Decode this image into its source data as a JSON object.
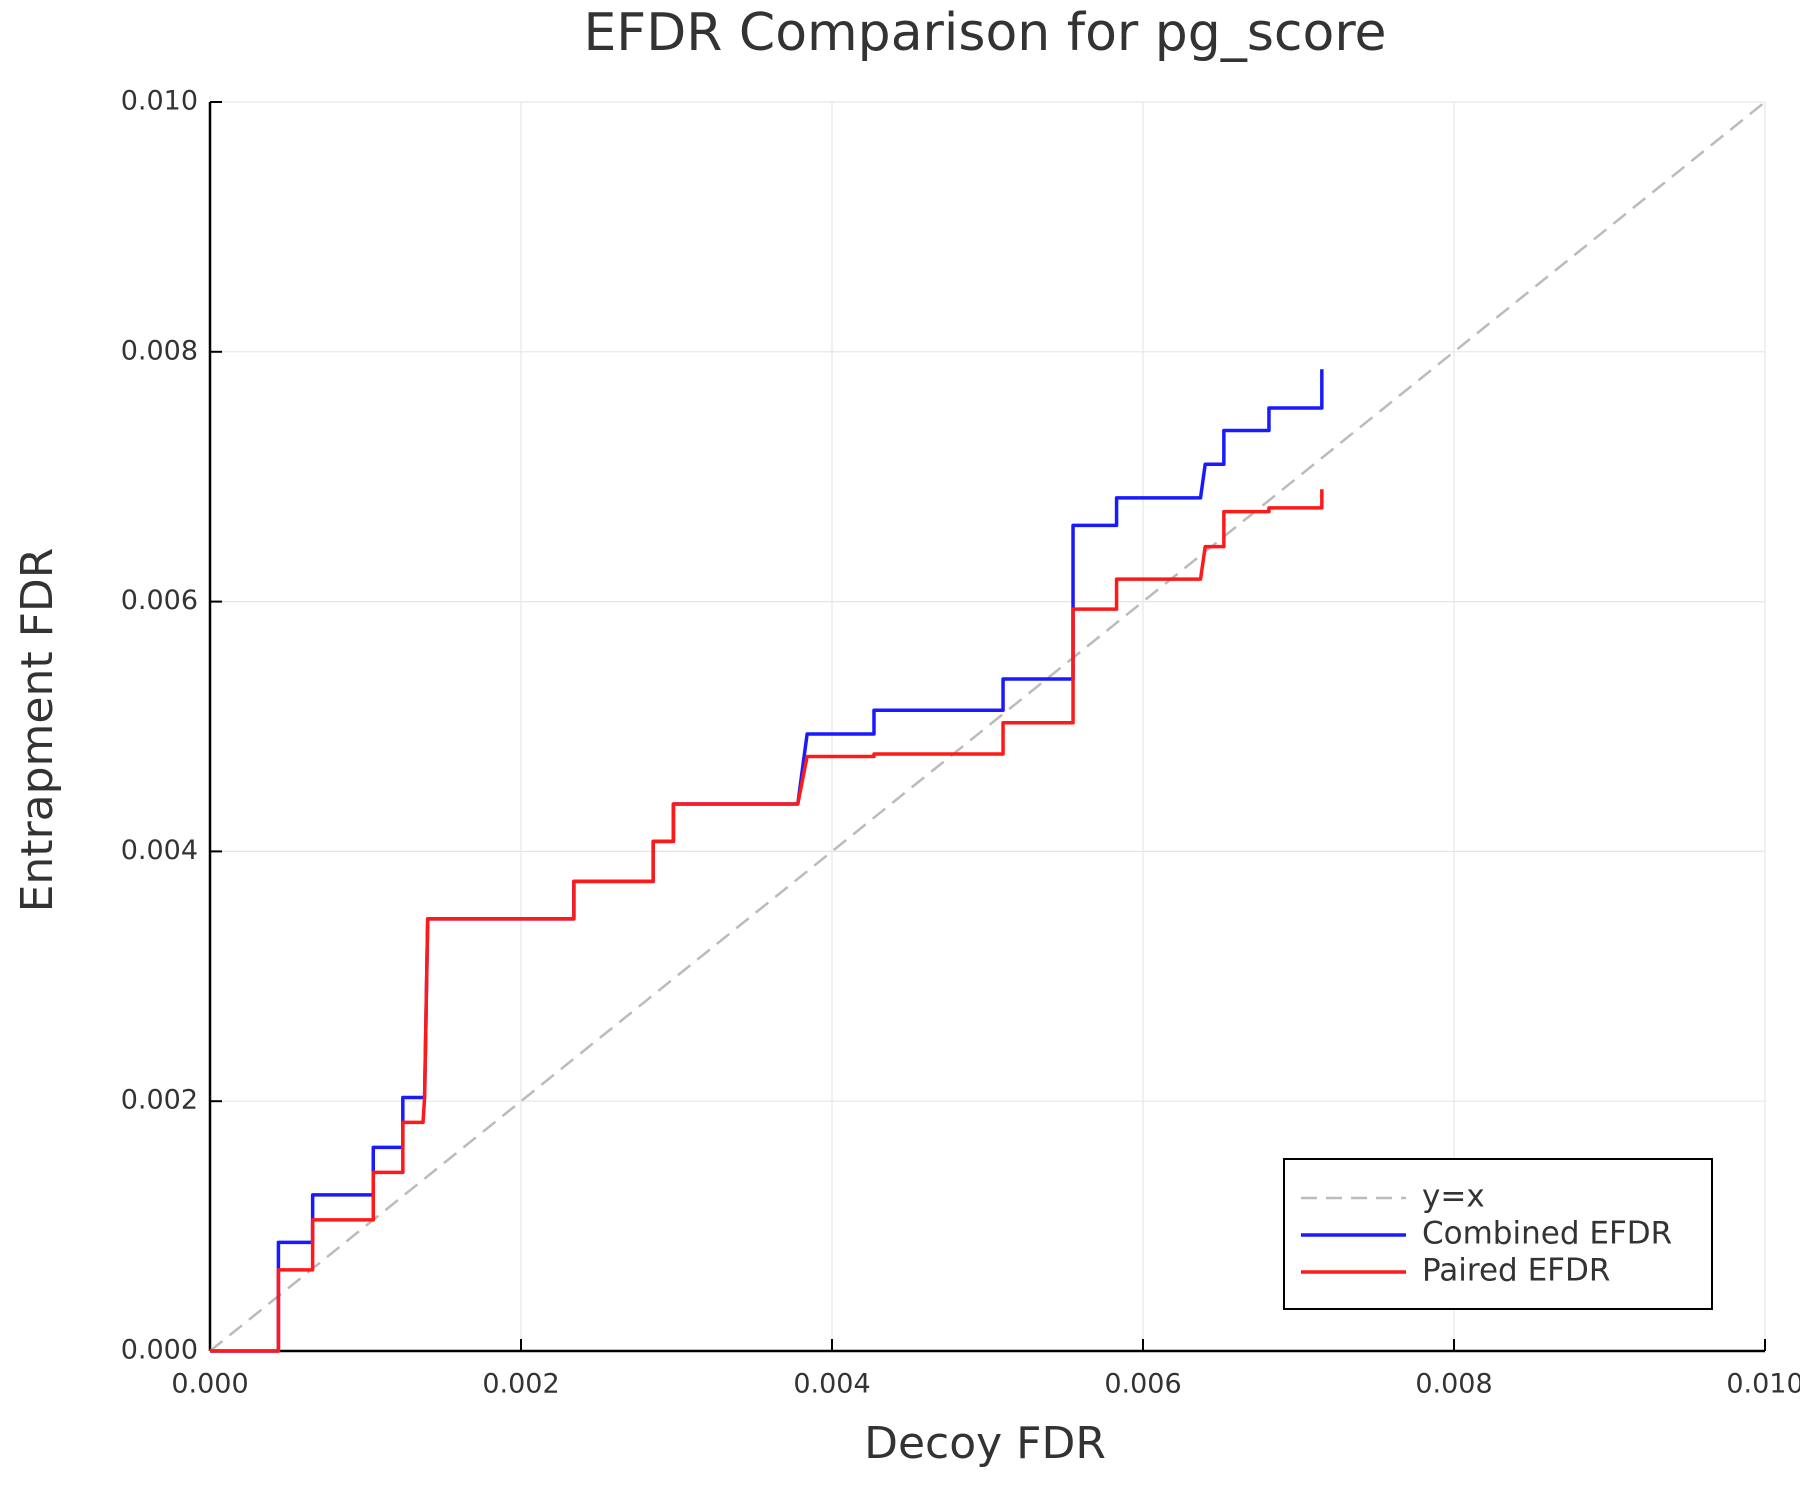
{
  "chart_data": {
    "type": "line",
    "title": "EFDR Comparison for pg_score",
    "x_label": "Decoy FDR",
    "y_label": "Entrapment FDR",
    "xlim": [
      0,
      0.01
    ],
    "ylim": [
      0,
      0.01
    ],
    "xticks": [
      {
        "value": 0,
        "label": "0.000"
      },
      {
        "value": 0.002,
        "label": "0.002"
      },
      {
        "value": 0.004,
        "label": "0.004"
      },
      {
        "value": 0.006,
        "label": "0.006"
      },
      {
        "value": 0.008,
        "label": "0.008"
      },
      {
        "value": 0.01,
        "label": "0.010"
      }
    ],
    "yticks": [
      {
        "value": 0,
        "label": "0.000"
      },
      {
        "value": 0.002,
        "label": "0.002"
      },
      {
        "value": 0.004,
        "label": "0.004"
      },
      {
        "value": 0.006,
        "label": "0.006"
      },
      {
        "value": 0.008,
        "label": "0.008"
      },
      {
        "value": 0.01,
        "label": "0.010"
      }
    ],
    "grid": true,
    "legend": "lower right",
    "series": [
      {
        "name": "y=x",
        "color": "#bbbbbb",
        "style": "dashed",
        "x": [
          0,
          0.01
        ],
        "values": [
          0,
          0.01
        ]
      },
      {
        "name": "Combined EFDR",
        "color": "#1a1aff",
        "style": "solid",
        "x": [
          0,
          0.00044,
          0.00044,
          0.00066,
          0.00066,
          0.00105,
          0.00105,
          0.00124,
          0.00124,
          0.00138,
          0.0014,
          0.00234,
          0.00234,
          0.00285,
          0.00285,
          0.00298,
          0.00298,
          0.00378,
          0.00384,
          0.00427,
          0.00427,
          0.0051,
          0.0051,
          0.00555,
          0.00555,
          0.00583,
          0.00583,
          0.00637,
          0.0064,
          0.00652,
          0.00652,
          0.00681,
          0.00681,
          0.00715,
          0.00715
        ],
        "values": [
          0,
          0,
          0.00087,
          0.00087,
          0.00125,
          0.00125,
          0.00163,
          0.00163,
          0.00203,
          0.00203,
          0.00346,
          0.00346,
          0.00376,
          0.00376,
          0.00408,
          0.00408,
          0.00438,
          0.00438,
          0.00494,
          0.00494,
          0.00513,
          0.00513,
          0.00538,
          0.00538,
          0.00661,
          0.00661,
          0.00683,
          0.00683,
          0.0071,
          0.0071,
          0.00737,
          0.00737,
          0.00755,
          0.00755,
          0.00786
        ]
      },
      {
        "name": "Paired EFDR",
        "color": "#ff1a1a",
        "style": "solid",
        "x": [
          0,
          0.00044,
          0.00044,
          0.00066,
          0.00066,
          0.00105,
          0.00105,
          0.00124,
          0.00124,
          0.00137,
          0.00138,
          0.0014,
          0.00234,
          0.00234,
          0.00285,
          0.00285,
          0.00298,
          0.00298,
          0.00378,
          0.00384,
          0.00427,
          0.00427,
          0.0051,
          0.0051,
          0.00555,
          0.00555,
          0.00583,
          0.00583,
          0.00637,
          0.0064,
          0.00652,
          0.00652,
          0.00681,
          0.00681,
          0.00715,
          0.00715
        ],
        "values": [
          0,
          0,
          0.00065,
          0.00065,
          0.00105,
          0.00105,
          0.00143,
          0.00143,
          0.00183,
          0.00183,
          0.00203,
          0.00346,
          0.00346,
          0.00376,
          0.00376,
          0.00408,
          0.00408,
          0.00438,
          0.00438,
          0.00476,
          0.00476,
          0.00478,
          0.00478,
          0.00503,
          0.00503,
          0.00594,
          0.00594,
          0.00618,
          0.00618,
          0.00644,
          0.00644,
          0.00672,
          0.00672,
          0.00675,
          0.00675,
          0.0069
        ]
      }
    ]
  }
}
